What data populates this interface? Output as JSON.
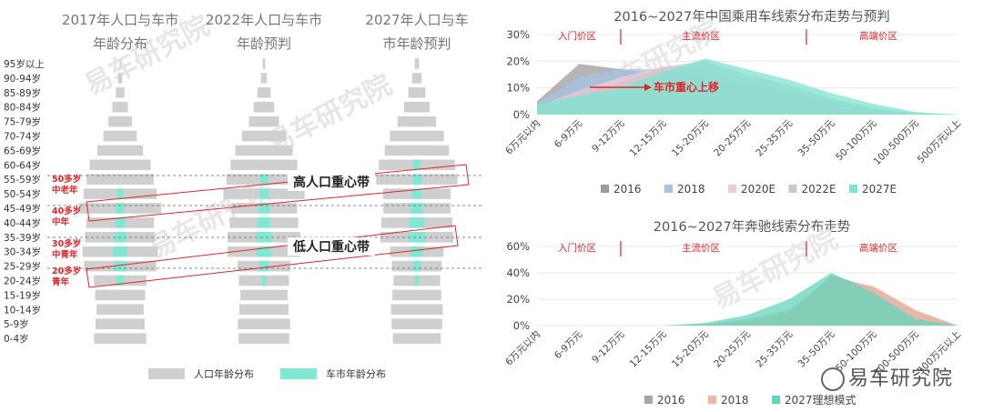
{
  "chart_data": [
    {
      "type": "bar",
      "subtype": "population-pyramids",
      "categories": [
        "95岁以上",
        "90-94岁",
        "85-89岁",
        "80-84岁",
        "75-79岁",
        "70-74岁",
        "65-69岁",
        "60-64岁",
        "55-59岁",
        "50-54岁",
        "45-49岁",
        "40-44岁",
        "35-39岁",
        "30-34岁",
        "25-29岁",
        "20-24岁",
        "15-19岁",
        "10-14岁",
        "5-9岁",
        "0-4岁"
      ],
      "panels": [
        {
          "title_line1": "2017年人口与车市",
          "title_line2": "年龄分布",
          "population": [
            0.3,
            1.0,
            2.0,
            3.6,
            5.5,
            7.8,
            10.7,
            14.2,
            15.7,
            17.1,
            19.2,
            15.8,
            16.4,
            17.6,
            16.9,
            12.3,
            11.7,
            11.0,
            11.5,
            12.2
          ],
          "car_market": [
            0,
            0,
            0,
            0,
            0,
            0,
            0,
            0,
            0,
            1.4,
            1.9,
            2.2,
            2.7,
            3.3,
            2.9,
            1.8,
            0,
            0,
            0,
            0
          ]
        },
        {
          "title_line1": "2022年人口与车市",
          "title_line2": "年龄预判",
          "population": [
            0.6,
            1.4,
            3.1,
            4.8,
            7.0,
            10.3,
            13.4,
            15.6,
            17.6,
            19.0,
            15.5,
            16.0,
            17.0,
            17.0,
            12.3,
            11.7,
            11.0,
            11.5,
            12.2,
            11.8
          ],
          "car_market": [
            0,
            0,
            0,
            0,
            0,
            0,
            0,
            0,
            1.8,
            2.1,
            2.6,
            3.1,
            3.6,
            3.3,
            2.1,
            1.0,
            0,
            0,
            0,
            0
          ]
        },
        {
          "title_line1": "2027年人口与车",
          "title_line2": "市年龄预判",
          "population": [
            1.0,
            2.2,
            4.0,
            6.0,
            9.0,
            12.6,
            15.0,
            17.8,
            19.0,
            15.8,
            15.7,
            16.6,
            17.0,
            12.5,
            11.6,
            10.9,
            11.4,
            12.1,
            11.8,
            11.2
          ],
          "car_market": [
            0,
            0,
            0,
            0,
            0,
            0,
            0,
            1.6,
            2.0,
            2.4,
            3.0,
            3.5,
            4.0,
            2.8,
            1.8,
            1.0,
            0,
            0,
            0,
            0
          ]
        }
      ],
      "legend": [
        "人口年龄分布",
        "车市年龄分布"
      ],
      "colors": {
        "population": "#cfcfcf",
        "car_market": "#7ee8d3",
        "highlight": "#e0262a",
        "guide": "#666666"
      },
      "annotations": {
        "high_band": "高人口重心带",
        "low_band": "低人口重心带",
        "groups": [
          {
            "line1": "50多岁",
            "line2": "中老年"
          },
          {
            "line1": "40多岁",
            "line2": "中年"
          },
          {
            "line1": "30多岁",
            "line2": "中青年"
          },
          {
            "line1": "20多岁",
            "line2": "青年"
          }
        ]
      }
    },
    {
      "type": "area",
      "title": "2016~2027年中国乘用车线索分布走势与预判",
      "categories": [
        "6万元以内",
        "6-9万元",
        "9-12万元",
        "12-15万元",
        "15-20万元",
        "20-25万元",
        "25-35万元",
        "35-50万元",
        "50-100万元",
        "100-500万元",
        "500万元以上"
      ],
      "ylim": [
        0,
        30
      ],
      "yticks": [
        "0%",
        "10%",
        "20%",
        "30%"
      ],
      "series": [
        {
          "name": "2016",
          "color": "#9c9c9c",
          "values": [
            5,
            19,
            17,
            15,
            14,
            9,
            8,
            4,
            2,
            0.5,
            0
          ]
        },
        {
          "name": "2018",
          "color": "#a6c4e6",
          "values": [
            4,
            14,
            17,
            17,
            14,
            10,
            8,
            4,
            2,
            0.5,
            0
          ]
        },
        {
          "name": "2020E",
          "color": "#f4cbd3",
          "values": [
            3,
            9,
            14,
            18,
            17,
            12,
            9,
            5,
            2,
            0.5,
            0
          ]
        },
        {
          "name": "2022E",
          "color": "#c8c8c8",
          "values": [
            3,
            8,
            12,
            18,
            20,
            15,
            11,
            6,
            2.5,
            0.5,
            0
          ]
        },
        {
          "name": "2027E",
          "color": "#7de3d2",
          "values": [
            4,
            7,
            10,
            16,
            21,
            17,
            13,
            8,
            4,
            1,
            0
          ]
        }
      ],
      "zones": [
        "入门价区",
        "主流价区",
        "高端价区"
      ],
      "annotation": "车市重心上移"
    },
    {
      "type": "area",
      "title": "2016~2027年奔驰线索分布走势",
      "categories": [
        "6万元以内",
        "6-9万元",
        "9-12万元",
        "12-15万元",
        "15-20万元",
        "20-25万元",
        "25-35万元",
        "35-50万元",
        "50-100万元",
        "100-500万元",
        "500万元以上"
      ],
      "ylim": [
        0,
        60
      ],
      "yticks": [
        "0%",
        "20%",
        "40%",
        "60%"
      ],
      "series": [
        {
          "name": "2016",
          "color": "#a6a6a6",
          "values": [
            0,
            0,
            0,
            0,
            1,
            3,
            10,
            38,
            29,
            11,
            0
          ]
        },
        {
          "name": "2018",
          "color": "#f3b5a3",
          "values": [
            0,
            0,
            0,
            0,
            1,
            5,
            12,
            36,
            30,
            12,
            0
          ]
        },
        {
          "name": "2027理想模式",
          "color": "#63d6bc",
          "values": [
            0,
            0,
            0,
            0,
            2,
            8,
            20,
            40,
            25,
            5,
            0
          ]
        }
      ],
      "zones": [
        "入门价区",
        "主流价区",
        "高端价区"
      ]
    }
  ],
  "watermark": "易车研究院",
  "footer_watermark": "易车研究院"
}
